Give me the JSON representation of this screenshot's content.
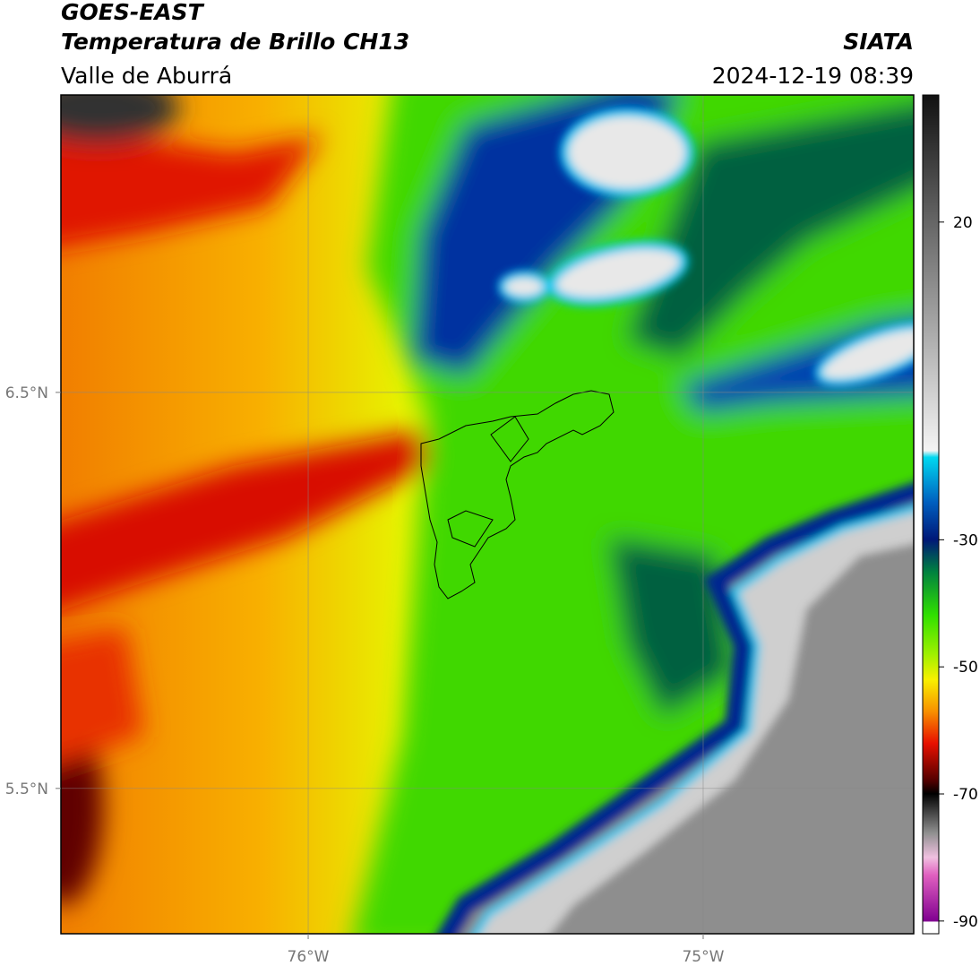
{
  "header": {
    "title": "GOES-EAST",
    "subtitle": "Temperatura de Brillo CH13",
    "region": "Valle de Aburrá",
    "source": "SIATA",
    "datetime": "2024-12-19 08:39"
  },
  "map": {
    "xlim": [
      -76.626,
      -74.467
    ],
    "ylim": [
      5.133,
      7.251
    ],
    "xticks": [
      {
        "value": -76,
        "label": "76°W"
      },
      {
        "value": -75,
        "label": "75°W"
      }
    ],
    "yticks": [
      {
        "value": 6.5,
        "label": "6.5°N"
      },
      {
        "value": 5.5,
        "label": "5.5°N"
      }
    ],
    "grid": true
  },
  "colorbar": {
    "ylim": [
      -92,
      40
    ],
    "yticks": [
      20,
      -30,
      -50,
      -70,
      -90
    ]
  }
}
